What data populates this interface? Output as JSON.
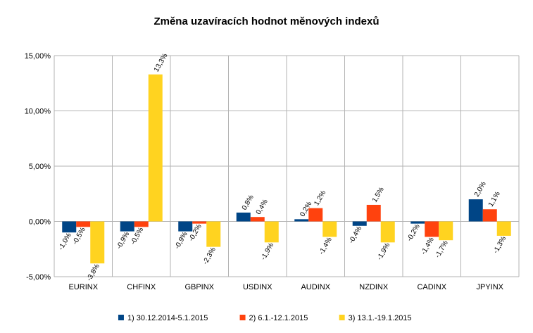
{
  "chart_data": {
    "type": "bar",
    "title": "Změna uzavíracích hodnot měnových indexů",
    "xlabel": "",
    "ylabel": "",
    "categories": [
      "EURINX",
      "CHFINX",
      "GBPINX",
      "USDINX",
      "AUDINX",
      "NZDINX",
      "CADINX",
      "JPYINX"
    ],
    "ylim": [
      -5,
      15
    ],
    "yticks": [
      {
        "value": -5,
        "label": "-5,00%"
      },
      {
        "value": 0,
        "label": "0,00%"
      },
      {
        "value": 5,
        "label": "5,00%"
      },
      {
        "value": 10,
        "label": "10,00%"
      },
      {
        "value": 15,
        "label": "15,00%"
      }
    ],
    "grid": true,
    "legend_position": "bottom",
    "series": [
      {
        "name": "1) 30.12.2014-5.1.2015",
        "color": "#004586",
        "values": [
          -1.0,
          -0.9,
          -0.9,
          0.8,
          0.2,
          -0.4,
          -0.2,
          2.0
        ],
        "labels": [
          "-1,0%",
          "-0,9%",
          "-0,9%",
          "0,8%",
          "0,2%",
          "-0,4%",
          "-0,2%",
          "2,0%"
        ]
      },
      {
        "name": "2) 6.1.-12.1.2015",
        "color": "#ff420e",
        "values": [
          -0.5,
          -0.5,
          -0.2,
          0.4,
          1.2,
          1.5,
          -1.4,
          1.1
        ],
        "labels": [
          "-0,5%",
          "-0,5%",
          "-0,2%",
          "0,4%",
          "1,2%",
          "1,5%",
          "-1,4%",
          "1,1%"
        ]
      },
      {
        "name": "3) 13.1.-19.1.2015",
        "color": "#ffd320",
        "values": [
          -3.8,
          13.3,
          -2.3,
          -1.9,
          -1.4,
          -1.9,
          -1.7,
          -1.3
        ],
        "labels": [
          "-3,8%",
          "13,3%",
          "-2,3%",
          "-1,9%",
          "-1,4%",
          "-1,9%",
          "-1,7%",
          "-1,3%"
        ]
      }
    ]
  }
}
